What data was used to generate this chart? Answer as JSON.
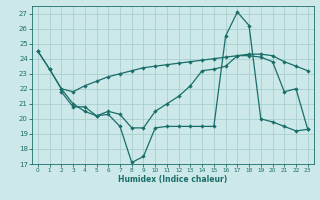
{
  "xlabel": "Humidex (Indice chaleur)",
  "xlim": [
    -0.5,
    23.5
  ],
  "ylim": [
    17,
    27.5
  ],
  "yticks": [
    17,
    18,
    19,
    20,
    21,
    22,
    23,
    24,
    25,
    26,
    27
  ],
  "xticks": [
    0,
    1,
    2,
    3,
    4,
    5,
    6,
    7,
    8,
    9,
    10,
    11,
    12,
    13,
    14,
    15,
    16,
    17,
    18,
    19,
    20,
    21,
    22,
    23
  ],
  "bg_color": "#cce8e8",
  "line_color": "#1a6e6a",
  "grid_color": "#aacece",
  "lineA_x": [
    0,
    1,
    2,
    3,
    4,
    5,
    6,
    7,
    8,
    9,
    10,
    11,
    12,
    13,
    14,
    15,
    16,
    17,
    18,
    19,
    20,
    21,
    22,
    23
  ],
  "lineA_y": [
    24.5,
    23.3,
    22.0,
    21.8,
    22.2,
    22.5,
    22.8,
    23.0,
    23.2,
    23.4,
    23.5,
    23.6,
    23.7,
    23.8,
    23.9,
    24.0,
    24.1,
    24.2,
    24.3,
    24.3,
    24.2,
    23.8,
    23.5,
    23.2
  ],
  "lineB_x": [
    0,
    1,
    2,
    3,
    4,
    5,
    6,
    7,
    8,
    9,
    10,
    11,
    12,
    13,
    14,
    15,
    16,
    17,
    18,
    19,
    20,
    21,
    22,
    23
  ],
  "lineB_y": [
    24.5,
    23.3,
    22.0,
    21.0,
    20.5,
    20.2,
    20.5,
    20.3,
    19.4,
    19.4,
    20.5,
    21.0,
    21.5,
    22.2,
    23.2,
    23.3,
    23.5,
    24.2,
    24.2,
    24.1,
    23.8,
    21.8,
    22.0,
    19.3
  ],
  "lineC_x": [
    2,
    3,
    4,
    5,
    6,
    7,
    8,
    9,
    10,
    11,
    12,
    13,
    14,
    15,
    16,
    17,
    18,
    19,
    20,
    21,
    22,
    23
  ],
  "lineC_y": [
    21.8,
    20.8,
    20.8,
    20.2,
    20.3,
    19.5,
    17.1,
    17.5,
    19.4,
    19.5,
    19.5,
    19.5,
    19.5,
    19.5,
    25.5,
    27.1,
    26.2,
    20.0,
    19.8,
    19.5,
    19.2,
    19.3
  ]
}
